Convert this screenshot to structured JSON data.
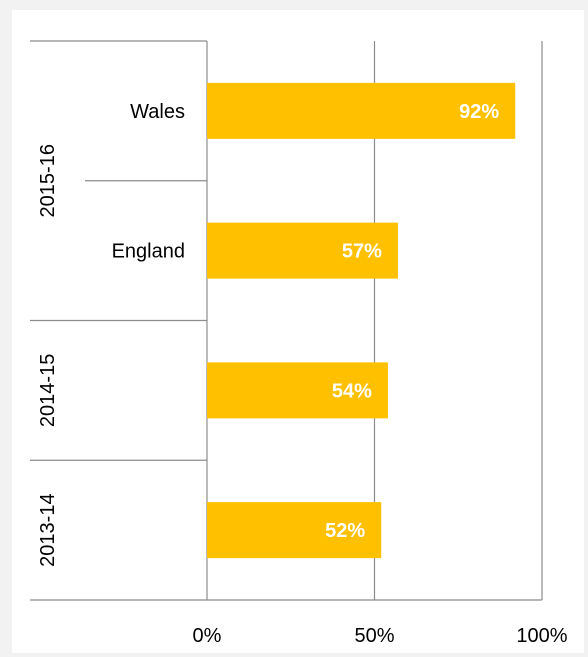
{
  "chart_data": {
    "type": "bar",
    "orientation": "horizontal",
    "title": "",
    "xlabel": "",
    "ylabel": "",
    "xlim": [
      0,
      100
    ],
    "x_ticks": [
      "0%",
      "50%",
      "100%"
    ],
    "grid": true,
    "bar_color": "#ffc000",
    "label_color": "#ffffff",
    "groups": [
      {
        "label": "2015-16",
        "rows": [
          {
            "category": "Wales",
            "value": 92,
            "label": "92%"
          },
          {
            "category": "England",
            "value": 57,
            "label": "57%"
          }
        ]
      },
      {
        "label": "2014-15",
        "rows": [
          {
            "category": "",
            "value": 54,
            "label": "54%"
          }
        ]
      },
      {
        "label": "2013-14",
        "rows": [
          {
            "category": "",
            "value": 52,
            "label": "52%"
          }
        ]
      }
    ]
  }
}
